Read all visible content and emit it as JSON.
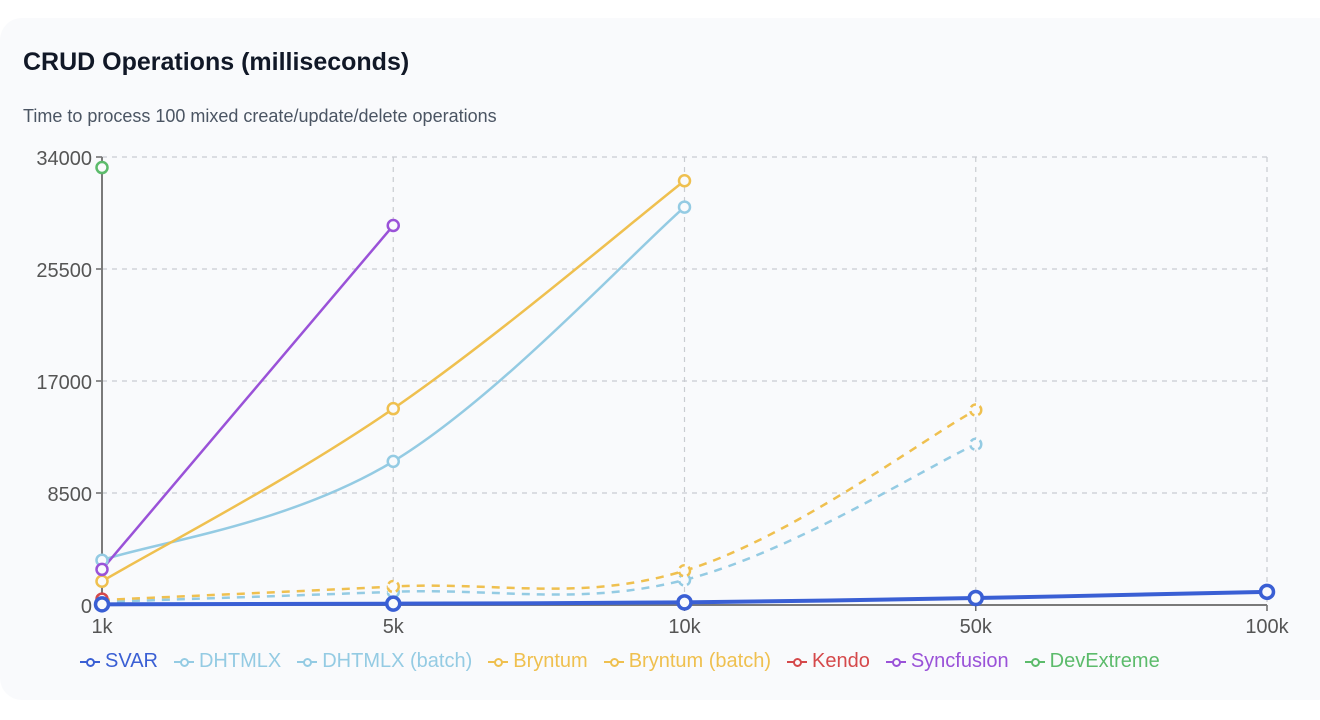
{
  "header": {
    "title": "CRUD Operations (milliseconds)",
    "subtitle": "Time to process 100 mixed create/update/delete operations"
  },
  "chart_data": {
    "type": "line",
    "title": "CRUD Operations (milliseconds)",
    "subtitle": "Time to process 100 mixed create/update/delete operations",
    "xlabel": "",
    "ylabel": "",
    "categories": [
      "1k",
      "5k",
      "10k",
      "50k",
      "100k"
    ],
    "yticks": [
      0,
      8500,
      17000,
      25500,
      34000
    ],
    "ylim": [
      0,
      34000
    ],
    "grid": true,
    "legend_position": "bottom",
    "series": [
      {
        "name": "SVAR",
        "color": "#3a5fd4",
        "dashed": false,
        "width": 4,
        "values": [
          50,
          100,
          200,
          530,
          1000
        ]
      },
      {
        "name": "DHTMLX",
        "color": "#94cbe3",
        "dashed": false,
        "width": 2.5,
        "values": [
          3400,
          10900,
          30200,
          null,
          null
        ]
      },
      {
        "name": "DHTMLX (batch)",
        "color": "#94cbe3",
        "dashed": true,
        "width": 2.5,
        "values": [
          230,
          1000,
          1900,
          12200,
          null
        ]
      },
      {
        "name": "Bryntum",
        "color": "#efc04f",
        "dashed": false,
        "width": 2.5,
        "values": [
          1800,
          14900,
          32200,
          null,
          null
        ]
      },
      {
        "name": "Bryntum (batch)",
        "color": "#efc04f",
        "dashed": true,
        "width": 2.5,
        "values": [
          380,
          1400,
          2600,
          14800,
          null
        ]
      },
      {
        "name": "Kendo",
        "color": "#d5494b",
        "dashed": false,
        "width": 2.5,
        "values": [
          450,
          null,
          null,
          null,
          null
        ]
      },
      {
        "name": "Syncfusion",
        "color": "#9a52d8",
        "dashed": false,
        "width": 2.5,
        "values": [
          2700,
          28800,
          null,
          null,
          null
        ]
      },
      {
        "name": "DevExtreme",
        "color": "#5cbb6b",
        "dashed": false,
        "width": 2.5,
        "values": [
          33200,
          null,
          null,
          null,
          null
        ]
      }
    ]
  }
}
